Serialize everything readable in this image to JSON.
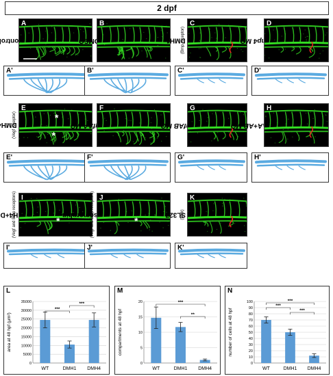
{
  "figure": {
    "header": "2 dpf",
    "rows": [
      {
        "panels": [
          {
            "letter": "A",
            "label": "control",
            "sublabel": "",
            "italic": false,
            "red_mark": false,
            "asterisks": 0
          },
          {
            "letter": "B",
            "label": "DMSO",
            "sublabel": "",
            "italic": false,
            "red_mark": false,
            "asterisks": 0
          },
          {
            "letter": "C",
            "label": "DMH1",
            "sublabel": "(Bmp receptor)",
            "italic": false,
            "red_mark": true,
            "asterisks": 0
          },
          {
            "letter": "D",
            "label": "bmp4 MO",
            "sublabel": "",
            "italic": true,
            "red_mark": true,
            "asterisks": 0
          }
        ],
        "traces": [
          "A'",
          "B'",
          "C'",
          "D'"
        ]
      },
      {
        "panels": [
          {
            "letter": "E",
            "label": "DMH4",
            "sublabel": "(Vegf receptor)",
            "italic": false,
            "red_mark": false,
            "asterisks": 2
          },
          {
            "letter": "F",
            "label": "vegfAA MO",
            "sublabel": "",
            "italic": true,
            "red_mark": false,
            "asterisks": 0
          },
          {
            "letter": "G",
            "label": "vegfAB MO",
            "sublabel": "",
            "italic": true,
            "red_mark": true,
            "asterisks": 0
          },
          {
            "letter": "H",
            "label": "vegfAA+AB MO",
            "sublabel": "",
            "italic": true,
            "red_mark": true,
            "asterisks": 0
          }
        ],
        "traces": [
          "E'",
          "F'",
          "G'",
          "H'"
        ]
      },
      {
        "panels": [
          {
            "letter": "I",
            "label": "DMH4+DMH1",
            "sublabel": "(Vegf and Bmp receptors)",
            "italic": false,
            "red_mark": false,
            "asterisks": 1
          },
          {
            "letter": "J",
            "label": "dorsomorphin",
            "sublabel": "(Vegf and Bmp receptors)",
            "italic": false,
            "red_mark": false,
            "asterisks": 1
          },
          {
            "letter": "K",
            "label": "SL327",
            "sublabel": "(Mek)",
            "italic": false,
            "red_mark": true,
            "asterisks": 0
          }
        ],
        "traces": [
          "I'",
          "J'",
          "K'"
        ]
      }
    ],
    "asterisk_symbol": "*"
  },
  "colors": {
    "vessel_green": "#33dd22",
    "trace_blue": "#5aaae0",
    "bar_blue": "#5b9bd5",
    "red_mark": "#ee2222"
  },
  "chart_data": [
    {
      "type": "bar",
      "letter": "L",
      "categories": [
        "WT",
        "DMH1",
        "DMH4"
      ],
      "values": [
        24500,
        10500,
        24500
      ],
      "errors": [
        4500,
        2000,
        4000
      ],
      "ylabel": "area at 48 hpf (μm²)",
      "ylim": [
        0,
        35000
      ],
      "yticks": [
        "0",
        "5000",
        "10000",
        "15000",
        "20000",
        "25000",
        "30000",
        "35000"
      ],
      "significance": [
        {
          "from": 0,
          "to": 1,
          "label": "***"
        },
        {
          "from": 1,
          "to": 2,
          "label": "***"
        }
      ],
      "grid": true
    },
    {
      "type": "bar",
      "letter": "M",
      "categories": [
        "WT",
        "DMH1",
        "DMH4"
      ],
      "values": [
        14.7,
        11.7,
        1.0
      ],
      "errors": [
        3.5,
        1.5,
        0.3
      ],
      "ylabel": "compartments at 48 hpf",
      "ylim": [
        0,
        20
      ],
      "yticks": [
        "0",
        "5",
        "10",
        "15",
        "20"
      ],
      "significance": [
        {
          "from": 0,
          "to": 2,
          "label": "***"
        },
        {
          "from": 1,
          "to": 2,
          "label": "**"
        }
      ],
      "grid": true
    },
    {
      "type": "bar",
      "letter": "N",
      "categories": [
        "WT",
        "DMH1",
        "DMH4"
      ],
      "values": [
        70,
        50,
        12
      ],
      "errors": [
        5,
        5,
        3
      ],
      "ylabel": "number of cells at 48 hpf",
      "ylim": [
        0,
        100
      ],
      "yticks": [
        "0",
        "10",
        "20",
        "30",
        "40",
        "50",
        "60",
        "70",
        "80",
        "90",
        "100"
      ],
      "significance": [
        {
          "from": 0,
          "to": 2,
          "label": "***"
        },
        {
          "from": 0,
          "to": 1,
          "label": "***"
        },
        {
          "from": 1,
          "to": 2,
          "label": "***"
        }
      ],
      "grid": true
    }
  ]
}
